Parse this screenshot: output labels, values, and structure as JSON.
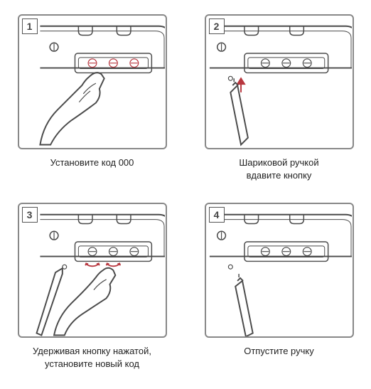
{
  "steps": [
    {
      "number": "1",
      "caption": "Установите код 000"
    },
    {
      "number": "2",
      "caption": "Шариковой ручкой\nвдавите кнопку"
    },
    {
      "number": "3",
      "caption": "Удерживая кнопку нажатой,\nустановите новый код"
    },
    {
      "number": "4",
      "caption": "Отпустите ручку"
    }
  ],
  "colors": {
    "accent": "#b8373f",
    "line": "#4a4a4a",
    "panel_border": "#888888",
    "text": "#222222"
  }
}
